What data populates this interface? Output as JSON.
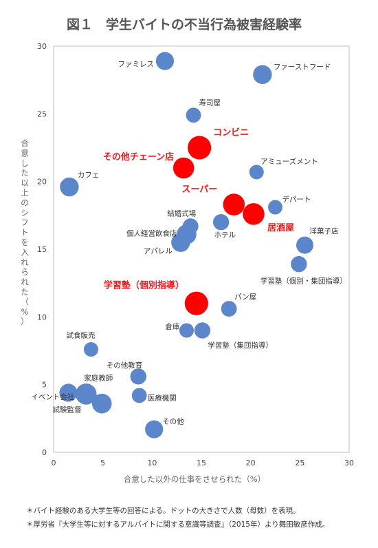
{
  "title": "図１　学生バイトの不当行為被害経験率",
  "notes": [
    "＊バイト経験のある大学生等の回答による。ドットの大きさで人数（母数）を表現。",
    "＊厚労省『大学生等に対するアルバイトに関する意識等調査』（2015年）より舞田敏彦作成。"
  ],
  "chart_data": {
    "type": "scatter",
    "xlabel": "合意した以外の仕事をさせられた（%）",
    "ylabel": "合意した以上のシフトを入れられた（%）",
    "xlim": [
      0,
      30
    ],
    "ylim": [
      0,
      30
    ],
    "xticks": [
      "0",
      "5",
      "10",
      "15",
      "20",
      "25",
      "30"
    ],
    "yticks": [
      "0",
      "5",
      "10",
      "15",
      "20",
      "25",
      "30"
    ],
    "colors": {
      "normal": "#5b86cc",
      "highlight": "#ff0000"
    },
    "points": [
      {
        "label": "ファミレス",
        "x": 11.3,
        "y": 28.9,
        "size": 3,
        "highlight": false
      },
      {
        "label": "ファーストフード",
        "x": 21.2,
        "y": 27.9,
        "size": 3.5,
        "highlight": false
      },
      {
        "label": "寿司屋",
        "x": 14.2,
        "y": 24.9,
        "size": 1.5,
        "highlight": false
      },
      {
        "label": "コンビニ",
        "x": 14.8,
        "y": 22.5,
        "size": 7,
        "highlight": true
      },
      {
        "label": "その他チェーン店",
        "x": 13.2,
        "y": 21.0,
        "size": 5,
        "highlight": true
      },
      {
        "label": "アミューズメント",
        "x": 20.6,
        "y": 20.7,
        "size": 1.3,
        "highlight": false
      },
      {
        "label": "カフェ",
        "x": 1.6,
        "y": 19.6,
        "size": 3.5,
        "highlight": false
      },
      {
        "label": "スーパー",
        "x": 18.3,
        "y": 18.3,
        "size": 5.5,
        "highlight": true
      },
      {
        "label": "デパート",
        "x": 22.5,
        "y": 18.1,
        "size": 1.3,
        "highlight": false
      },
      {
        "label": "居酒屋",
        "x": 20.3,
        "y": 17.6,
        "size": 5.5,
        "highlight": true
      },
      {
        "label": "結婚式場",
        "x": 13.9,
        "y": 16.7,
        "size": 1.8,
        "highlight": false
      },
      {
        "label": "ホテル",
        "x": 17.0,
        "y": 17.0,
        "size": 2,
        "highlight": false
      },
      {
        "label": "個人経営飲食店",
        "x": 13.5,
        "y": 16.1,
        "size": 4,
        "highlight": false
      },
      {
        "label": "アパレル",
        "x": 12.9,
        "y": 15.5,
        "size": 3.5,
        "highlight": false
      },
      {
        "label": "洋菓子店",
        "x": 25.5,
        "y": 15.3,
        "size": 2.5,
        "highlight": false
      },
      {
        "label": "学習塾（個別・集団指導）",
        "x": 24.9,
        "y": 13.9,
        "size": 2,
        "highlight": false
      },
      {
        "label": "学習塾（個別指導）",
        "x": 14.5,
        "y": 11.0,
        "size": 7,
        "highlight": true
      },
      {
        "label": "パン屋",
        "x": 17.8,
        "y": 10.6,
        "size": 1.8,
        "highlight": false
      },
      {
        "label": "倉庫",
        "x": 13.5,
        "y": 9.0,
        "size": 1.3,
        "highlight": false
      },
      {
        "label": "学習塾（集団指導）",
        "x": 15.1,
        "y": 9.0,
        "size": 2,
        "highlight": false
      },
      {
        "label": "試食販売",
        "x": 3.8,
        "y": 7.6,
        "size": 1.3,
        "highlight": false
      },
      {
        "label": "その他教育",
        "x": 8.6,
        "y": 5.6,
        "size": 2,
        "highlight": false
      },
      {
        "label": "家庭教師",
        "x": 3.3,
        "y": 4.3,
        "size": 5,
        "highlight": false
      },
      {
        "label": "試験監督",
        "x": 1.5,
        "y": 4.4,
        "size": 3,
        "highlight": false
      },
      {
        "label": "医療機関",
        "x": 8.7,
        "y": 4.2,
        "size": 1.5,
        "highlight": false
      },
      {
        "label": "イベント会社",
        "x": 4.9,
        "y": 3.6,
        "size": 4,
        "highlight": false
      },
      {
        "label": "その他",
        "x": 10.2,
        "y": 1.7,
        "size": 3,
        "highlight": false
      }
    ]
  }
}
